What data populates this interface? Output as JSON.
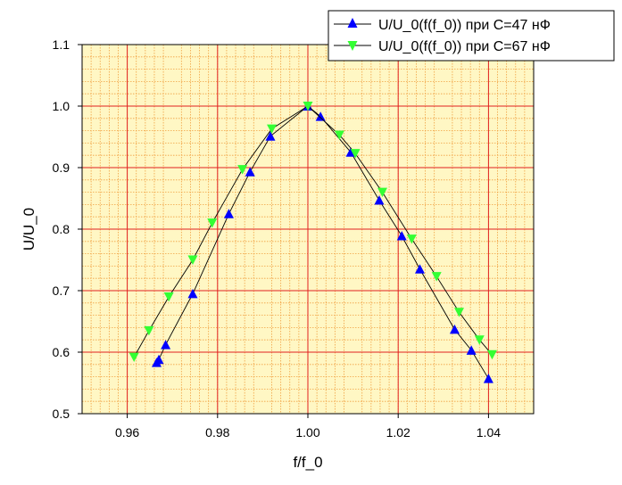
{
  "chart_data": {
    "type": "line",
    "xlabel": "f/f_0",
    "ylabel": "U/U_0",
    "xlim": [
      0.95,
      1.05
    ],
    "ylim": [
      0.5,
      1.1
    ],
    "x_ticks": [
      "0.96",
      "0.98",
      "1.00",
      "1.02",
      "1.04"
    ],
    "y_ticks": [
      "0.5",
      "0.6",
      "0.7",
      "0.8",
      "0.9",
      "1.0",
      "1.1"
    ],
    "grid": true,
    "legend_position": "top-right",
    "series": [
      {
        "name": "U/U_0(f(f_0)) при C=47 нФ",
        "color": "#0000ff",
        "marker": "triangle-up",
        "x": [
          0.9665,
          0.967,
          0.9685,
          0.9745,
          0.9825,
          0.9872,
          0.9917,
          1.0,
          1.0028,
          1.0095,
          1.0158,
          1.0208,
          1.0248,
          1.0325,
          1.0362,
          1.04
        ],
        "y": [
          0.583,
          0.588,
          0.612,
          0.695,
          0.825,
          0.893,
          0.951,
          1.0,
          0.983,
          0.925,
          0.847,
          0.789,
          0.735,
          0.637,
          0.603,
          0.557
        ]
      },
      {
        "name": "U/U_0(f(f_0)) при C=67 нФ",
        "color": "#33ff33",
        "marker": "triangle-down",
        "x": [
          0.9615,
          0.9648,
          0.9692,
          0.9745,
          0.9788,
          0.9855,
          0.992,
          1.0,
          1.007,
          1.0105,
          1.0165,
          1.023,
          1.0285,
          1.0335,
          1.038,
          1.0408
        ],
        "y": [
          0.592,
          0.635,
          0.69,
          0.75,
          0.81,
          0.897,
          0.963,
          1.0,
          0.953,
          0.923,
          0.86,
          0.784,
          0.723,
          0.665,
          0.62,
          0.596
        ]
      }
    ]
  }
}
